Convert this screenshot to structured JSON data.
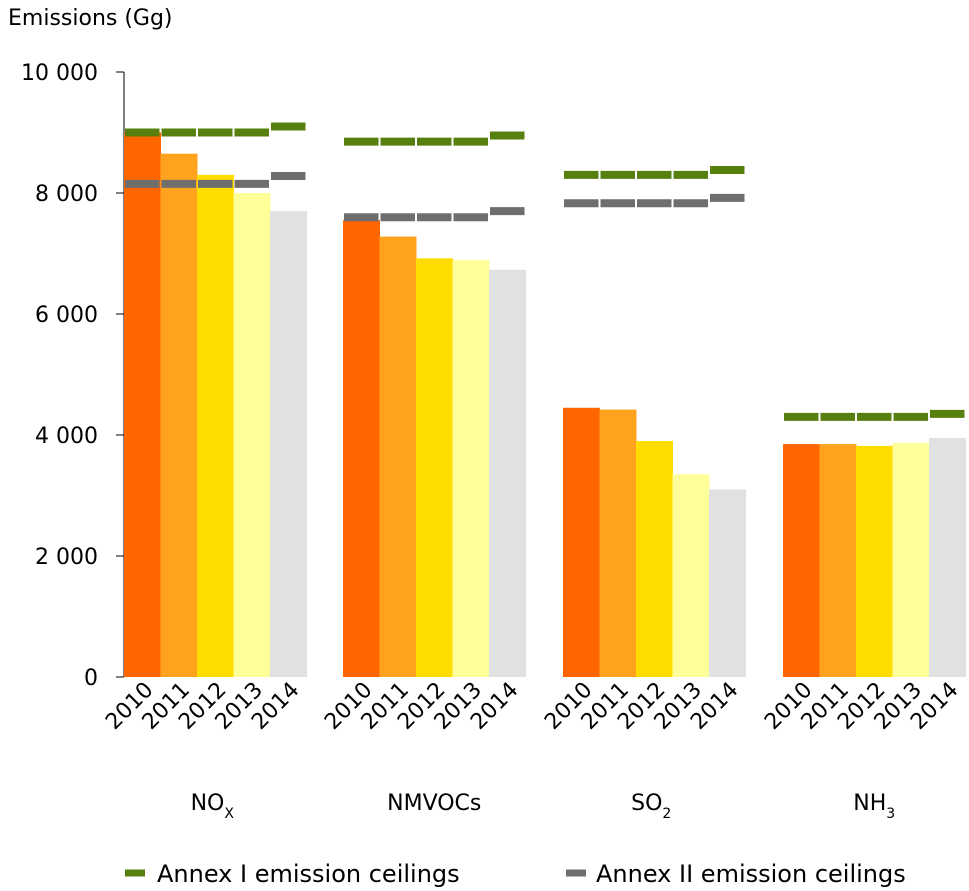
{
  "chart_data": {
    "type": "bar",
    "ylabel": "Emissions (Gg)",
    "ylim": [
      0,
      10000
    ],
    "yticks": [
      {
        "value": 0,
        "label": "0"
      },
      {
        "value": 2000,
        "label": "2 000"
      },
      {
        "value": 4000,
        "label": "4 000"
      },
      {
        "value": 6000,
        "label": "6 000"
      },
      {
        "value": 8000,
        "label": "8 000"
      },
      {
        "value": 10000,
        "label": "10 000"
      }
    ],
    "years": [
      "2010",
      "2011",
      "2012",
      "2013",
      "2014"
    ],
    "year_colors": [
      "#ff6600",
      "#ffa31f",
      "#ffdd00",
      "#ffff99",
      "#e1e1e1"
    ],
    "groups": [
      {
        "label": "NO",
        "sub": "X",
        "values": [
          9000,
          8650,
          8300,
          8000,
          7700
        ],
        "annex1": [
          9000,
          9000,
          9000,
          9000,
          9100
        ],
        "annex2": [
          8150,
          8150,
          8150,
          8150,
          8280
        ]
      },
      {
        "label": "NMVOCs",
        "sub": "",
        "values": [
          7550,
          7280,
          6920,
          6890,
          6730
        ],
        "annex1": [
          8850,
          8850,
          8850,
          8850,
          8950
        ],
        "annex2": [
          7600,
          7600,
          7600,
          7600,
          7700
        ]
      },
      {
        "label": "SO",
        "sub": "2",
        "values": [
          4450,
          4420,
          3900,
          3350,
          3100
        ],
        "annex1": [
          8300,
          8300,
          8300,
          8300,
          8380
        ],
        "annex2": [
          7830,
          7830,
          7830,
          7830,
          7920
        ]
      },
      {
        "label": "NH",
        "sub": "3",
        "values": [
          3850,
          3850,
          3820,
          3870,
          3950
        ],
        "annex1": [
          4300,
          4300,
          4300,
          4300,
          4350
        ],
        "annex2": []
      }
    ],
    "series": [
      {
        "name": "Annex I emission ceilings",
        "color": "#577f0d"
      },
      {
        "name": "Annex II emission ceilings",
        "color": "#6e6e6e"
      }
    ],
    "grid": false,
    "legend_position": "bottom"
  }
}
